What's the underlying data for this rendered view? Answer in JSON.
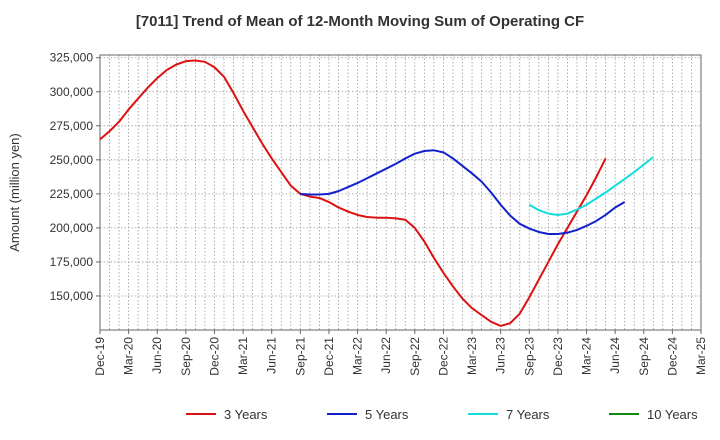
{
  "chart_data": {
    "type": "line",
    "title": "[7011]  Trend of Mean of 12-Month Moving Sum of Operating CF",
    "xlabel": "",
    "ylabel": "Amount (million yen)",
    "ylim": [
      125000,
      327000
    ],
    "yticks": [
      150000,
      175000,
      200000,
      225000,
      250000,
      275000,
      300000,
      325000
    ],
    "ytick_labels": [
      "150,000",
      "175,000",
      "200,000",
      "225,000",
      "250,000",
      "275,000",
      "300,000",
      "325,000"
    ],
    "x_start": "Dec-19",
    "x_end": "Mar-25",
    "xtick_labels": [
      "Dec-19",
      "Mar-20",
      "Jun-20",
      "Sep-20",
      "Dec-20",
      "Mar-21",
      "Jun-21",
      "Sep-21",
      "Dec-21",
      "Mar-22",
      "Jun-22",
      "Sep-22",
      "Dec-22",
      "Mar-23",
      "Jun-23",
      "Sep-23",
      "Dec-23",
      "Mar-24",
      "Jun-24",
      "Sep-24",
      "Dec-24",
      "Mar-25"
    ],
    "grid": true,
    "legend_position": "bottom",
    "series": [
      {
        "name": "3 Years",
        "color": "#dd1111",
        "start_month_index": 0,
        "values": [
          265000,
          271000,
          278000,
          287000,
          295000,
          303000,
          310000,
          316000,
          320000,
          322500,
          323000,
          322000,
          318000,
          311000,
          299000,
          286000,
          274000,
          262000,
          251000,
          241000,
          231000,
          225000,
          223000,
          222000,
          219000,
          215000,
          212000,
          209500,
          208000,
          207500,
          207500,
          207000,
          206000,
          200000,
          190000,
          178000,
          167000,
          157000,
          148000,
          141000,
          136000,
          131000,
          128000,
          130000,
          137000,
          149000,
          162000,
          175000,
          188000,
          200000,
          212000,
          224000,
          237000,
          251000
        ]
      },
      {
        "name": "5 Years",
        "color": "#1122cc",
        "start_month_index": 21,
        "values": [
          225000,
          224500,
          224500,
          225000,
          227000,
          230000,
          233000,
          236500,
          240000,
          243500,
          247000,
          251000,
          254500,
          256500,
          257000,
          255500,
          251000,
          245500,
          240000,
          234000,
          226000,
          217000,
          209000,
          203000,
          199500,
          197000,
          195500,
          195500,
          196500,
          198500,
          201500,
          205000,
          209500,
          215000,
          219000
        ]
      },
      {
        "name": "7 Years",
        "color": "#11dddd",
        "start_month_index": 45,
        "values": [
          217000,
          213000,
          210500,
          209500,
          210500,
          213500,
          217000,
          221500,
          226000,
          231000,
          236000,
          241000,
          246500,
          252000
        ]
      },
      {
        "name": "10 Years",
        "color": "#118811",
        "start_month_index": null,
        "values": []
      }
    ]
  }
}
